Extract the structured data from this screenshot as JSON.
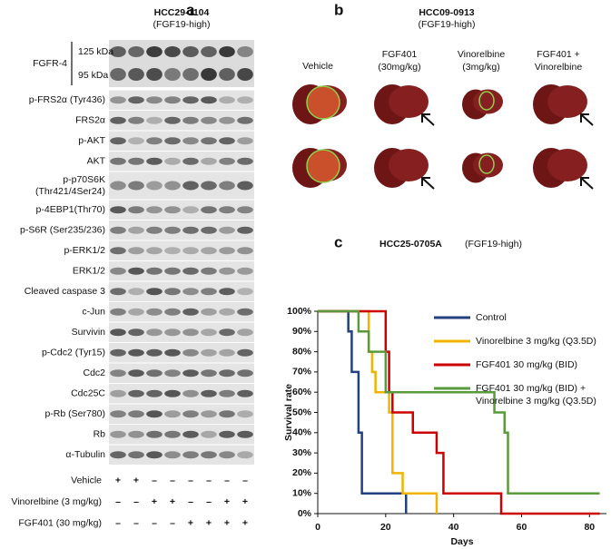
{
  "panel_a": {
    "label": "a",
    "title": "HCC29-1104",
    "subtitle": "(FGF19-high)",
    "fgfr4": {
      "label": "FGFR-4",
      "bands": [
        "125 kDa",
        "95 kDa"
      ]
    },
    "blots": [
      [
        "p-FRS2α (Tyr436)"
      ],
      [
        "FRS2α"
      ],
      [
        "p-AKT"
      ],
      [
        "AKT"
      ],
      [
        "p-p70S6K",
        "(Thr421/4Ser24)"
      ],
      [
        "p-4EBP1(Thr70)"
      ],
      [
        "p-S6R (Ser235/236)"
      ],
      [
        "p-ERK1/2"
      ],
      [
        "ERK1/2"
      ],
      [
        "Cleaved caspase 3"
      ],
      [
        "c-Jun"
      ],
      [
        "Survivin"
      ],
      [
        "p-Cdc2 (Tyr15)"
      ],
      [
        "Cdc2"
      ],
      [
        "Cdc25C"
      ],
      [
        "p-Rb (Ser780)"
      ],
      [
        "Rb"
      ],
      [
        "α-Tubulin"
      ]
    ],
    "treatments": [
      {
        "name": "Vehicle",
        "lanes": [
          "+",
          "+",
          "–",
          "–",
          "–",
          "–",
          "–",
          "–"
        ]
      },
      {
        "name": "Vinorelbine (3 mg/kg)",
        "lanes": [
          "–",
          "–",
          "+",
          "+",
          "–",
          "–",
          "+",
          "+"
        ]
      },
      {
        "name": "FGF401 (30 mg/kg)",
        "lanes": [
          "–",
          "–",
          "–",
          "–",
          "+",
          "+",
          "+",
          "+"
        ]
      }
    ]
  },
  "panel_b": {
    "label": "b",
    "title": "HCC09-0913",
    "subtitle": "(FGF19-high)",
    "groups": [
      [
        "Vehicle"
      ],
      [
        "FGF401",
        "(30mg/kg)"
      ],
      [
        "Vinorelbine",
        "(3mg/kg)"
      ],
      [
        "FGF401 +",
        "Vinorelbine"
      ]
    ]
  },
  "chart_data": {
    "type": "line",
    "panel_label": "c",
    "title": "HCC25-0705A",
    "subtitle": "(FGF19-high)",
    "x_label": "Days",
    "y_label": "Survival rate",
    "xlim": [
      0,
      85
    ],
    "xticks": [
      0,
      20,
      40,
      60,
      80
    ],
    "ylim": [
      0,
      100
    ],
    "yticks": [
      {
        "value": 0,
        "label": "0%"
      },
      {
        "value": 10,
        "label": "10%"
      },
      {
        "value": 20,
        "label": "20%"
      },
      {
        "value": 30,
        "label": "30%"
      },
      {
        "value": 40,
        "label": "40%"
      },
      {
        "value": 50,
        "label": "50%"
      },
      {
        "value": 60,
        "label": "60%"
      },
      {
        "value": 70,
        "label": "70%"
      },
      {
        "value": 80,
        "label": "80%"
      },
      {
        "value": 90,
        "label": "90%"
      },
      {
        "value": 100,
        "label": "100%"
      }
    ],
    "series": [
      {
        "name": [
          "Control"
        ],
        "color": "#23407f",
        "x": [
          0,
          9,
          9,
          10,
          10,
          12,
          12,
          13,
          13,
          26,
          26
        ],
        "values": [
          100,
          100,
          90,
          90,
          70,
          70,
          40,
          40,
          10,
          10,
          0
        ]
      },
      {
        "name": [
          "Vinorelbine 3 mg/kg (Q3.5D)"
        ],
        "color": "#f0b400",
        "x": [
          0,
          15,
          15,
          16,
          16,
          17,
          17,
          21,
          21,
          22,
          22,
          25,
          25,
          35,
          35
        ],
        "values": [
          100,
          100,
          80,
          80,
          70,
          70,
          60,
          60,
          50,
          50,
          20,
          20,
          10,
          10,
          0
        ]
      },
      {
        "name": [
          "FGF401 30 mg/kg (BID)"
        ],
        "color": "#cc0000",
        "x": [
          0,
          20,
          20,
          21,
          21,
          22,
          22,
          28,
          28,
          35,
          35,
          37,
          37,
          54,
          54,
          83
        ],
        "values": [
          100,
          100,
          80,
          80,
          60,
          60,
          50,
          50,
          40,
          40,
          30,
          30,
          10,
          10,
          0,
          0
        ]
      },
      {
        "name": [
          "FGF401 30 mg/kg (BID) +",
          "Vinorelbine 3 mg/kg (Q3.5D)"
        ],
        "color": "#5b9a3c",
        "x": [
          0,
          12,
          12,
          15,
          15,
          20,
          20,
          52,
          52,
          55,
          55,
          56,
          56,
          83
        ],
        "values": [
          100,
          100,
          90,
          90,
          80,
          80,
          60,
          60,
          50,
          50,
          40,
          40,
          10,
          10
        ]
      }
    ]
  }
}
